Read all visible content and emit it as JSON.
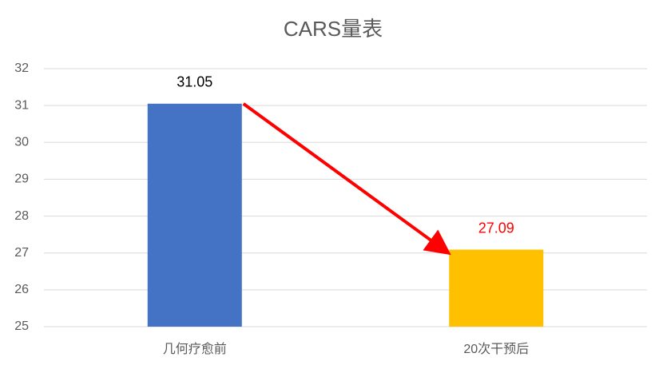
{
  "chart_data": {
    "type": "bar",
    "title": "CARS量表",
    "categories": [
      "几何疗愈前",
      "20次干预后"
    ],
    "values": [
      31.05,
      27.09
    ],
    "colors": [
      "#4472c4",
      "#ffc000"
    ],
    "label_colors": [
      "#000000",
      "#ff0000"
    ],
    "ylim": [
      25,
      32
    ],
    "yticks": [
      25,
      26,
      27,
      28,
      29,
      30,
      31,
      32
    ],
    "grid": true
  }
}
